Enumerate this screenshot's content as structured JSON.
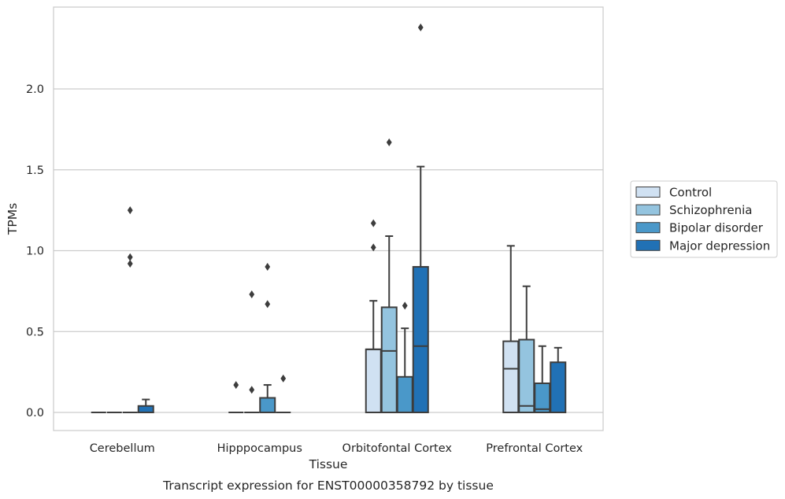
{
  "chart_data": {
    "type": "box",
    "caption": "Transcript expression for ENST00000358792 by tissue",
    "xlabel": "Tissue",
    "ylabel": "TPMs",
    "ylim": [
      -0.115,
      2.515
    ],
    "yticks": [
      0.0,
      0.5,
      1.0,
      1.5,
      2.0
    ],
    "ytick_labels": [
      "0.0",
      "0.5",
      "1.0",
      "1.5",
      "2.0"
    ],
    "grid": "horizontal",
    "legend_position": "right",
    "categories": [
      "Cerebellum",
      "Hipppocampus",
      "Orbitofontal Cortex",
      "Prefrontal Cortex"
    ],
    "series": [
      {
        "name": "Control",
        "color": "#d0e1f2",
        "boxes": [
          {
            "q1": 0,
            "median": 0,
            "q3": 0,
            "whisker_low": 0,
            "whisker_high": 0,
            "outliers": []
          },
          {
            "q1": 0,
            "median": 0,
            "q3": 0,
            "whisker_low": 0,
            "whisker_high": 0,
            "outliers": [
              0.17
            ]
          },
          {
            "q1": 0,
            "median": 0.39,
            "q3": 0.39,
            "whisker_low": 0,
            "whisker_high": 0.69,
            "outliers": [
              1.02,
              1.17
            ]
          },
          {
            "q1": 0,
            "median": 0.27,
            "q3": 0.44,
            "whisker_low": 0,
            "whisker_high": 1.03,
            "outliers": []
          }
        ]
      },
      {
        "name": "Schizophrenia",
        "color": "#94c4df",
        "boxes": [
          {
            "q1": 0,
            "median": 0,
            "q3": 0,
            "whisker_low": 0,
            "whisker_high": 0,
            "outliers": []
          },
          {
            "q1": 0,
            "median": 0,
            "q3": 0,
            "whisker_low": 0,
            "whisker_high": 0,
            "outliers": [
              0.14,
              0.73
            ]
          },
          {
            "q1": 0,
            "median": 0.38,
            "q3": 0.65,
            "whisker_low": 0,
            "whisker_high": 1.09,
            "outliers": [
              1.67
            ]
          },
          {
            "q1": 0,
            "median": 0.04,
            "q3": 0.45,
            "whisker_low": 0,
            "whisker_high": 0.78,
            "outliers": []
          }
        ]
      },
      {
        "name": "Bipolar disorder",
        "color": "#4a98c9",
        "boxes": [
          {
            "q1": 0,
            "median": 0,
            "q3": 0,
            "whisker_low": 0,
            "whisker_high": 0,
            "outliers": [
              0.92,
              0.96,
              1.25
            ]
          },
          {
            "q1": 0,
            "median": 0,
            "q3": 0.09,
            "whisker_low": 0,
            "whisker_high": 0.17,
            "outliers": [
              0.67,
              0.9
            ]
          },
          {
            "q1": 0,
            "median": 0,
            "q3": 0.22,
            "whisker_low": 0,
            "whisker_high": 0.52,
            "outliers": [
              0.66
            ]
          },
          {
            "q1": 0,
            "median": 0.02,
            "q3": 0.18,
            "whisker_low": 0,
            "whisker_high": 0.41,
            "outliers": []
          }
        ]
      },
      {
        "name": "Major depression",
        "color": "#2171b5",
        "boxes": [
          {
            "q1": 0,
            "median": 0,
            "q3": 0.04,
            "whisker_low": 0,
            "whisker_high": 0.08,
            "outliers": []
          },
          {
            "q1": 0,
            "median": 0,
            "q3": 0,
            "whisker_low": 0,
            "whisker_high": 0,
            "outliers": [
              0.21
            ]
          },
          {
            "q1": 0,
            "median": 0.41,
            "q3": 0.9,
            "whisker_low": 0,
            "whisker_high": 1.52,
            "outliers": [
              2.38
            ]
          },
          {
            "q1": 0,
            "median": 0,
            "q3": 0.31,
            "whisker_low": 0,
            "whisker_high": 0.4,
            "outliers": []
          }
        ]
      }
    ]
  }
}
